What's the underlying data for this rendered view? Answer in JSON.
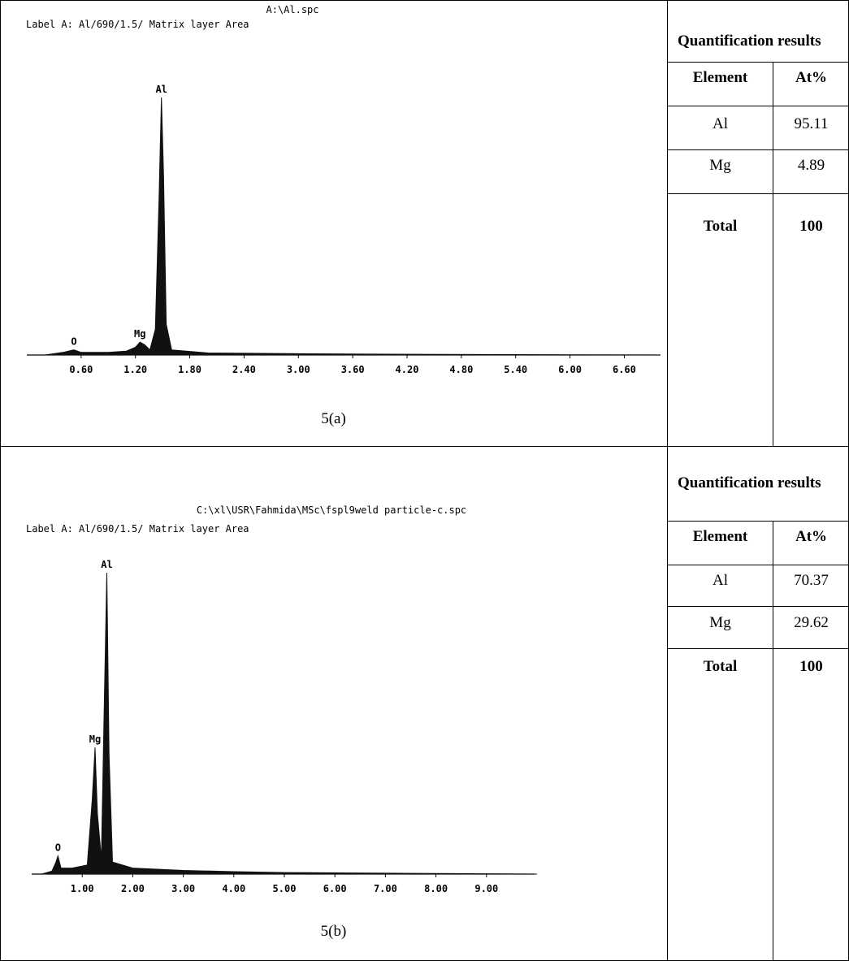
{
  "chart_data": [
    {
      "type": "area",
      "title": "A:\\Al.spc",
      "subtitle": "Label A: Al/690/1.5/ Matrix layer Area",
      "caption": "5(a)",
      "xlabel": "",
      "ylabel": "",
      "xticks": [
        "0.60",
        "1.20",
        "1.80",
        "2.40",
        "3.00",
        "3.60",
        "4.20",
        "4.80",
        "5.40",
        "6.00",
        "6.60"
      ],
      "xlim": [
        0.0,
        7.0
      ],
      "ylim": [
        0,
        100
      ],
      "grid": false,
      "series": [
        {
          "x": [
            0.2,
            0.4,
            0.52,
            0.6,
            0.9,
            1.1,
            1.2,
            1.25,
            1.3,
            1.36,
            1.42,
            1.46,
            1.487,
            1.51,
            1.54,
            1.6,
            2.0,
            3.0,
            4.0,
            5.0,
            6.0,
            7.0
          ],
          "y": [
            0,
            1,
            2,
            1,
            1,
            1.5,
            3,
            5,
            4,
            2,
            10,
            60,
            100,
            70,
            12,
            2,
            0.8,
            0.5,
            0.3,
            0.2,
            0.1,
            0
          ]
        }
      ],
      "annotations": [
        {
          "text": "O",
          "x": 0.52,
          "y": 2
        },
        {
          "text": "Mg",
          "x": 1.25,
          "y": 5
        },
        {
          "text": "Al",
          "x": 1.487,
          "y": 100
        }
      ]
    },
    {
      "type": "area",
      "title": "C:\\xl\\USR\\Fahmida\\MSc\\fspl9weld particle-c.spc",
      "subtitle": "Label A: Al/690/1.5/ Matrix layer Area",
      "caption": "5(b)",
      "xlabel": "",
      "ylabel": "",
      "xticks": [
        "1.00",
        "2.00",
        "3.00",
        "4.00",
        "5.00",
        "6.00",
        "7.00",
        "8.00",
        "9.00"
      ],
      "xlim": [
        0.0,
        10.0
      ],
      "ylim": [
        0,
        100
      ],
      "grid": false,
      "series": [
        {
          "x": [
            0.2,
            0.4,
            0.48,
            0.52,
            0.58,
            0.8,
            1.1,
            1.2,
            1.254,
            1.3,
            1.38,
            1.44,
            1.487,
            1.53,
            1.6,
            2.0,
            3.0,
            4.0,
            5.0,
            6.0,
            7.0,
            8.0,
            9.0,
            10.0
          ],
          "y": [
            0,
            1,
            4,
            6,
            2,
            2,
            3,
            25,
            42,
            20,
            5,
            60,
            100,
            40,
            4,
            2,
            1.2,
            0.8,
            0.5,
            0.4,
            0.3,
            0.2,
            0.1,
            0
          ]
        }
      ],
      "annotations": [
        {
          "text": "O",
          "x": 0.52,
          "y": 6
        },
        {
          "text": "Mg",
          "x": 1.254,
          "y": 42
        },
        {
          "text": "Al",
          "x": 1.487,
          "y": 100
        }
      ]
    }
  ],
  "tables": [
    {
      "title": "Quantification results",
      "headers": [
        "Element",
        "At%"
      ],
      "rows": [
        [
          "Al",
          "95.11"
        ],
        [
          "Mg",
          "4.89"
        ]
      ],
      "total": [
        "Total",
        "100"
      ]
    },
    {
      "title": "Quantification results",
      "headers": [
        "Element",
        "At%"
      ],
      "rows": [
        [
          "Al",
          "70.37"
        ],
        [
          "Mg",
          "29.62"
        ]
      ],
      "total": [
        "Total",
        "100"
      ]
    }
  ]
}
